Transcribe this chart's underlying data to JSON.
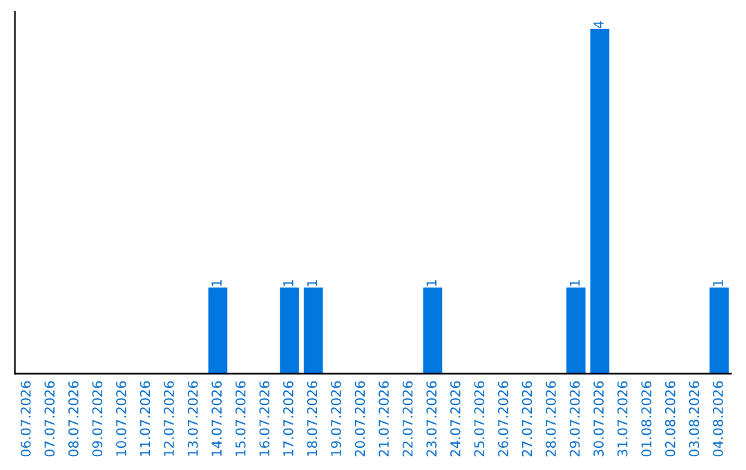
{
  "chart_data": {
    "type": "bar",
    "categories": [
      "06.07.2026",
      "07.07.2026",
      "08.07.2026",
      "09.07.2026",
      "10.07.2026",
      "11.07.2026",
      "12.07.2026",
      "13.07.2026",
      "14.07.2026",
      "15.07.2026",
      "16.07.2026",
      "17.07.2026",
      "18.07.2026",
      "19.07.2026",
      "20.07.2026",
      "21.07.2026",
      "22.07.2026",
      "23.07.2026",
      "24.07.2026",
      "25.07.2026",
      "26.07.2026",
      "27.07.2026",
      "28.07.2026",
      "29.07.2026",
      "30.07.2026",
      "31.07.2026",
      "01.08.2026",
      "02.08.2026",
      "03.08.2026",
      "04.08.2026"
    ],
    "values": [
      0,
      0,
      0,
      0,
      0,
      0,
      0,
      0,
      1,
      0,
      0,
      1,
      1,
      0,
      0,
      0,
      0,
      1,
      0,
      0,
      0,
      0,
      0,
      1,
      4,
      0,
      0,
      0,
      0,
      1
    ],
    "value_labels": [
      null,
      null,
      null,
      null,
      null,
      null,
      null,
      null,
      "1",
      null,
      null,
      "1",
      "1",
      null,
      null,
      null,
      null,
      "1",
      null,
      null,
      null,
      null,
      null,
      "1",
      "4",
      null,
      null,
      null,
      null,
      "1"
    ],
    "color": "#0078e0",
    "tick_labels": "x",
    "grid": false,
    "legend": false
  }
}
